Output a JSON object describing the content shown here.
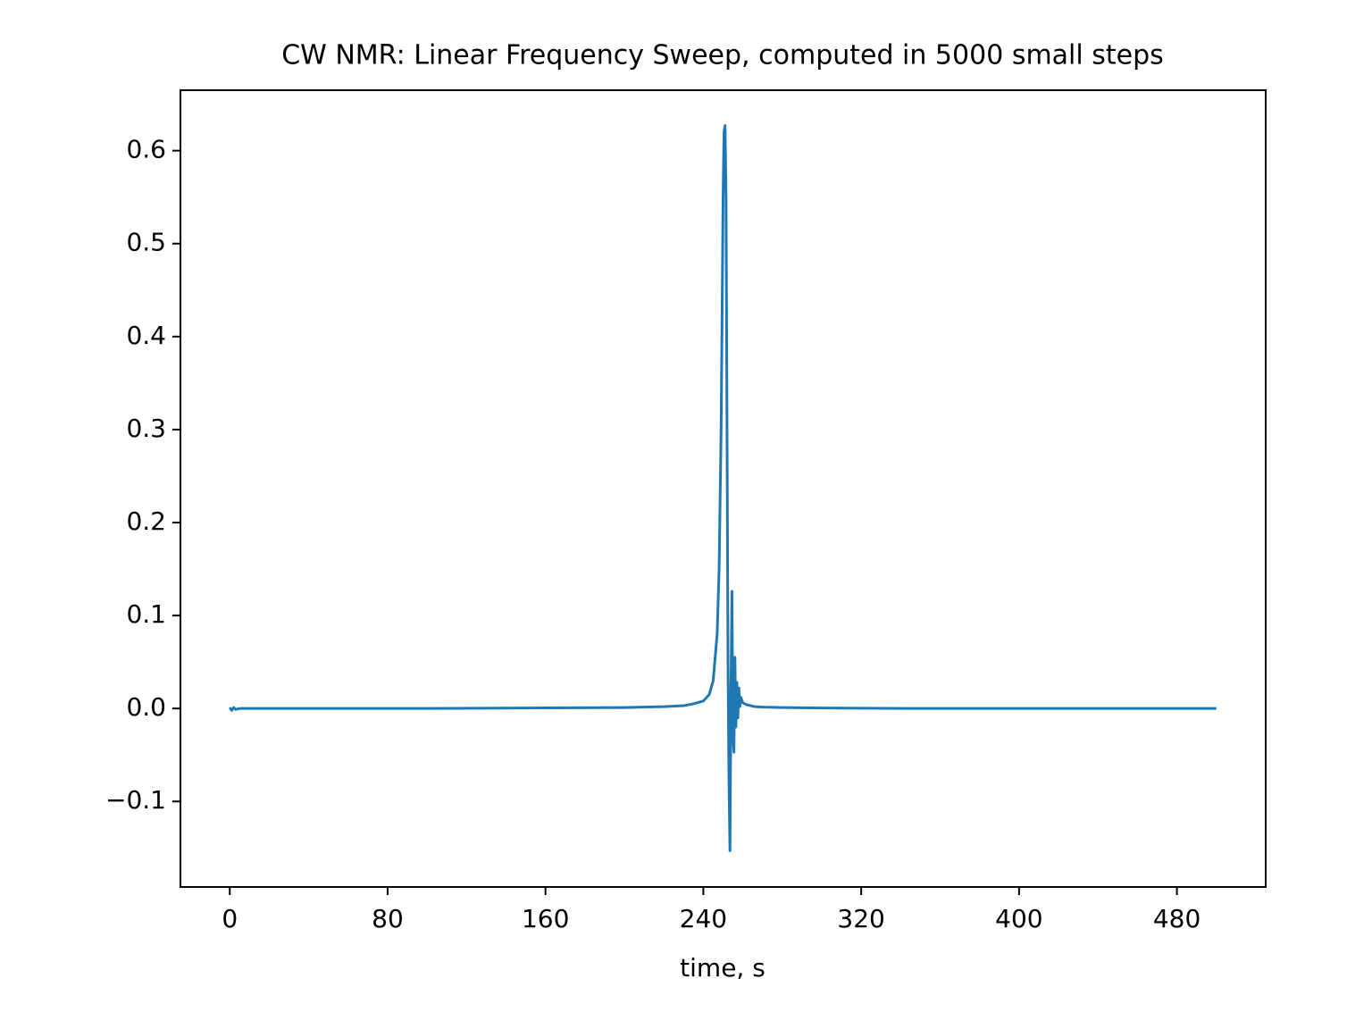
{
  "chart_data": {
    "type": "line",
    "title": "CW NMR: Linear Frequency Sweep, computed in 5000 small steps",
    "xlabel": "time, s",
    "x": [
      0,
      1,
      2,
      3,
      5,
      50,
      100,
      150,
      200,
      220,
      230,
      235,
      240,
      243,
      245,
      247,
      248,
      249,
      249.5,
      250,
      250.5,
      251,
      251.5,
      252,
      252.5,
      253,
      253.5,
      254,
      254.5,
      255,
      255.5,
      256,
      256.5,
      257,
      257.5,
      258,
      258.5,
      259,
      260,
      261,
      262,
      264,
      266,
      270,
      280,
      300,
      350,
      400,
      450,
      500
    ],
    "series": [
      {
        "color": "#1f77b4",
        "values": [
          0.001,
          -0.002,
          0.001,
          -0.001,
          0,
          0,
          0,
          0.0005,
          0.001,
          0.002,
          0.003,
          0.005,
          0.008,
          0.015,
          0.03,
          0.08,
          0.15,
          0.3,
          0.42,
          0.55,
          0.62,
          0.627,
          0.55,
          0.3,
          0.05,
          -0.08,
          -0.153,
          0.02,
          0.126,
          -0.03,
          -0.047,
          0.055,
          -0.02,
          0.028,
          -0.01,
          0.022,
          0.002,
          0.012,
          0.006,
          0.005,
          0.004,
          0.003,
          0.002,
          0.0015,
          0.001,
          0.0005,
          0,
          0,
          0,
          0
        ]
      }
    ],
    "xlim": [
      -25,
      525
    ],
    "xticks": [
      0,
      80,
      160,
      240,
      320,
      400,
      480
    ],
    "ylim": [
      -0.192,
      0.665
    ],
    "yticks": [
      {
        "value": -0.1,
        "label": "−0.1"
      },
      {
        "value": 0,
        "label": "0.0"
      },
      0.1,
      0.2,
      0.3,
      0.4,
      0.5,
      0.6
    ]
  }
}
